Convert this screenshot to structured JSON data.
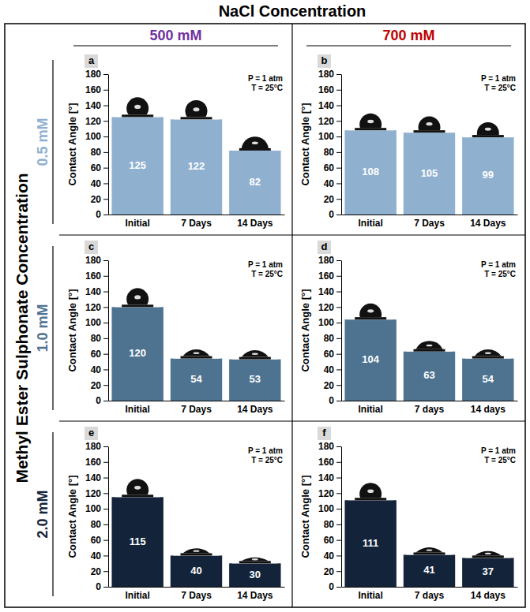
{
  "figure": {
    "title": "NaCl Concentration",
    "column_labels": [
      "500 mM",
      "700 mM"
    ],
    "column_colors": [
      "#7030a0",
      "#c00000"
    ],
    "row_title": "Methyl Ester Sulphonate Concentration",
    "row_labels": [
      "0.5 mM",
      "1.0 mM",
      "2.0 mM"
    ],
    "row_colors": [
      "#8fb0cf",
      "#4e7391",
      "#13243a"
    ]
  },
  "chart_data": [
    {
      "type": "bar",
      "title": "a",
      "annotations": [
        "P = 1 atm",
        "T = 25°C"
      ],
      "y_label": "Contact Angle [°]",
      "categories": [
        "Initial",
        "7 Days",
        "14 Days"
      ],
      "values": [
        125,
        122,
        82
      ],
      "color": "#8fb0cf",
      "ylim": [
        0,
        180
      ],
      "yticks": [
        0,
        20,
        40,
        60,
        80,
        100,
        120,
        140,
        160,
        180
      ],
      "data_labels": true
    },
    {
      "type": "bar",
      "title": "b",
      "annotations": [
        "P = 1 atm",
        "T = 25°C"
      ],
      "y_label": "Contact Angle [°]",
      "categories": [
        "Initial",
        "7 Days",
        "14 Days"
      ],
      "values": [
        108,
        105,
        99
      ],
      "color": "#8fb0cf",
      "ylim": [
        0,
        180
      ],
      "yticks": [
        0,
        20,
        40,
        60,
        80,
        100,
        120,
        140,
        160,
        180
      ],
      "data_labels": true
    },
    {
      "type": "bar",
      "title": "c",
      "annotations": [
        "P = 1 atm",
        "T = 25°C"
      ],
      "y_label": "Contact Angle [°]",
      "categories": [
        "Initial",
        "7 Days",
        "14 Days"
      ],
      "values": [
        120,
        54,
        53
      ],
      "color": "#4e7391",
      "ylim": [
        0,
        180
      ],
      "yticks": [
        0,
        20,
        40,
        60,
        80,
        100,
        120,
        140,
        160,
        180
      ],
      "data_labels": true
    },
    {
      "type": "bar",
      "title": "d",
      "annotations": [
        "P = 1 atm",
        "T = 25°C"
      ],
      "y_label": "Contact Angle [°]",
      "categories": [
        "Initial",
        "7 days",
        "14 days"
      ],
      "values": [
        104,
        63,
        54
      ],
      "color": "#4e7391",
      "ylim": [
        0,
        180
      ],
      "yticks": [
        0,
        20,
        40,
        60,
        80,
        100,
        120,
        140,
        160,
        180
      ],
      "data_labels": true
    },
    {
      "type": "bar",
      "title": "e",
      "annotations": [
        "P = 1 atm",
        "T = 25°C"
      ],
      "y_label": "Contact Angle [°]",
      "categories": [
        "Initial",
        "7 Days",
        "14 Days"
      ],
      "values": [
        115,
        40,
        30
      ],
      "color": "#13243a",
      "ylim": [
        0,
        180
      ],
      "yticks": [
        0,
        20,
        40,
        60,
        80,
        100,
        120,
        140,
        160,
        180
      ],
      "data_labels": true
    },
    {
      "type": "bar",
      "title": "f",
      "annotations": [
        "P = 1 atm",
        "T = 25°C"
      ],
      "y_label": "Contact Angle [°]",
      "categories": [
        "Initial",
        "7 days",
        "14 days"
      ],
      "values": [
        111,
        41,
        37
      ],
      "color": "#13243a",
      "ylim": [
        0,
        180
      ],
      "yticks": [
        0,
        20,
        40,
        60,
        80,
        100,
        120,
        140,
        160,
        180
      ],
      "data_labels": true
    }
  ]
}
